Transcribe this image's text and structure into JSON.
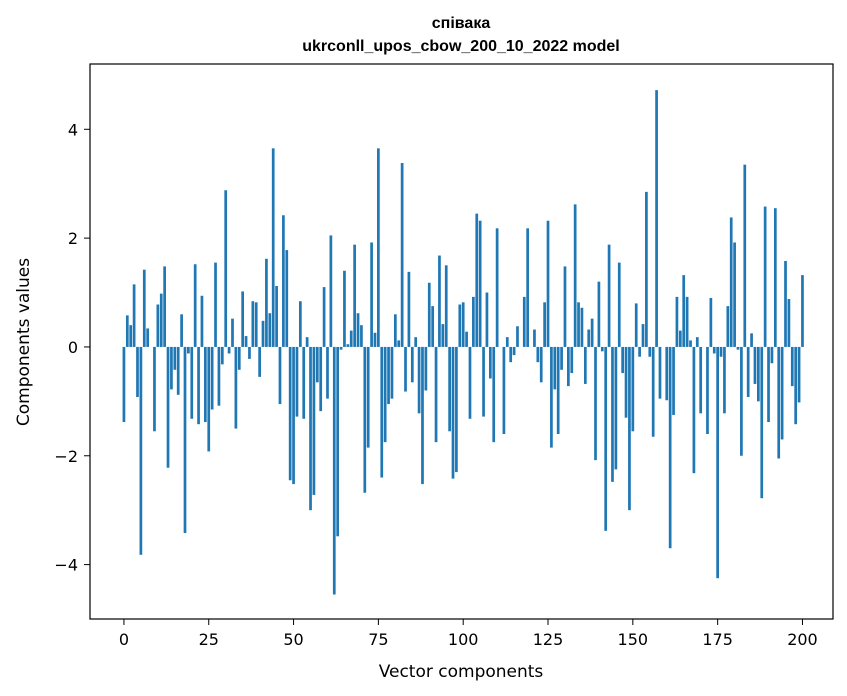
{
  "chart_data": {
    "type": "bar",
    "title_line1": "співака",
    "title_line2": "ukrconll_upos_cbow_200_10_2022 model",
    "xlabel": "Vector components",
    "ylabel": "Components values",
    "xlim": [
      -10,
      209
    ],
    "ylim": [
      -5.0,
      5.2
    ],
    "xticks": [
      0,
      25,
      50,
      75,
      100,
      125,
      150,
      175,
      200
    ],
    "yticks": [
      -4,
      -2,
      0,
      2,
      4
    ],
    "ytick_labels": [
      "−4",
      "−2",
      "0",
      "2",
      "4"
    ],
    "bar_color": "#1f77b4",
    "grid": false,
    "values": [
      -1.38,
      0.58,
      0.4,
      1.15,
      -0.92,
      -3.82,
      1.42,
      0.34,
      0.0,
      -1.55,
      0.78,
      0.98,
      1.48,
      -2.22,
      -0.78,
      -0.42,
      -0.88,
      0.6,
      -3.42,
      -0.12,
      -1.32,
      1.52,
      -1.42,
      0.94,
      -1.38,
      -1.92,
      -1.15,
      1.55,
      -1.08,
      -0.32,
      2.88,
      -0.12,
      0.52,
      -1.5,
      -0.42,
      1.02,
      0.2,
      -0.22,
      0.84,
      0.82,
      -0.55,
      0.48,
      1.62,
      0.62,
      3.65,
      1.12,
      -1.05,
      2.42,
      1.78,
      -2.45,
      -2.52,
      -1.28,
      0.84,
      -1.32,
      0.18,
      -3.0,
      -2.72,
      -0.65,
      -1.18,
      1.1,
      -0.95,
      2.05,
      -4.55,
      -3.48,
      -0.05,
      1.4,
      0.05,
      0.3,
      1.88,
      0.62,
      0.4,
      -2.68,
      -1.85,
      1.92,
      0.26,
      3.65,
      -2.4,
      -1.75,
      -1.05,
      -0.95,
      0.6,
      0.12,
      3.38,
      -0.82,
      1.38,
      -0.65,
      0.18,
      -1.22,
      -2.52,
      -0.8,
      1.18,
      0.75,
      -1.75,
      1.68,
      0.42,
      1.5,
      -1.55,
      -2.42,
      -2.3,
      0.78,
      0.82,
      0.28,
      -1.32,
      0.92,
      2.45,
      2.32,
      -1.28,
      1.0,
      -0.58,
      -1.75,
      2.18,
      0.0,
      -1.6,
      0.18,
      -0.28,
      -0.15,
      0.38,
      0.0,
      0.92,
      2.18,
      0.0,
      0.32,
      -0.28,
      -0.65,
      0.82,
      2.32,
      -1.85,
      -0.78,
      -1.6,
      -0.42,
      1.48,
      -0.72,
      -0.48,
      2.62,
      0.82,
      0.72,
      -0.68,
      0.32,
      0.52,
      -2.08,
      1.2,
      -0.08,
      -3.38,
      1.88,
      -2.48,
      -2.25,
      1.55,
      -0.48,
      -1.3,
      -3.0,
      -1.55,
      0.8,
      -0.18,
      0.42,
      2.85,
      -0.18,
      -1.65,
      4.72,
      -0.95,
      0.0,
      -0.98,
      -3.7,
      -1.25,
      0.92,
      0.3,
      1.32,
      0.92,
      0.12,
      -2.32,
      0.18,
      -1.22,
      0.0,
      -1.6,
      0.9,
      -0.12,
      -4.25,
      -0.18,
      -1.22,
      0.75,
      2.38,
      1.92,
      -0.05,
      -2.0,
      3.35,
      -0.92,
      0.25,
      -0.68,
      -1.0,
      -2.78,
      2.58,
      -1.38,
      -0.3,
      2.55,
      -2.05,
      -1.7,
      1.58,
      0.88,
      -0.72,
      -1.42,
      -1.02,
      1.32
    ]
  }
}
